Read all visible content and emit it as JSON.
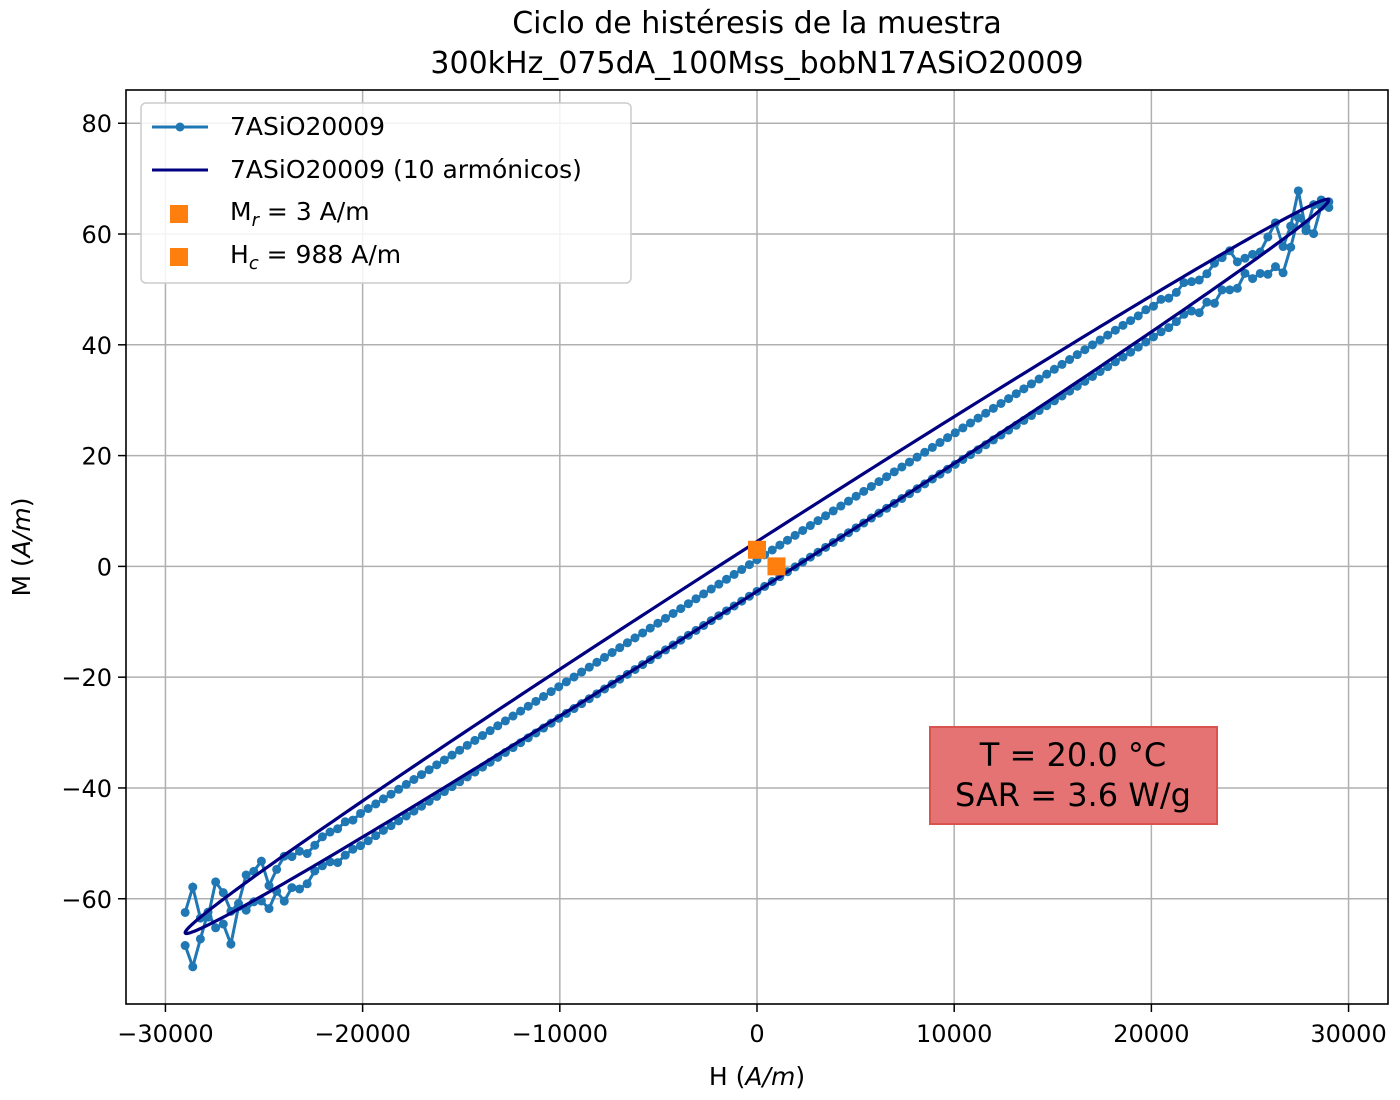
{
  "chart_data": {
    "type": "line",
    "title": [
      "Ciclo de histéresis de la muestra",
      "300kHz_075dA_100Mss_bobN17ASiO20009"
    ],
    "xlabel": {
      "prefix": "H (",
      "unit": "A/m",
      "suffix": ")"
    },
    "ylabel": {
      "prefix": "M (",
      "unit": "A/m",
      "suffix": ")"
    },
    "xlim": [
      -32000,
      32000
    ],
    "ylim": [
      -79,
      86
    ],
    "x_ticks": [
      -30000,
      -20000,
      -10000,
      0,
      10000,
      20000,
      30000
    ],
    "x_tick_labels": [
      "−30000",
      "−20000",
      "−10000",
      "0",
      "10000",
      "20000",
      "30000"
    ],
    "y_ticks": [
      -60,
      -40,
      -20,
      0,
      20,
      40,
      60,
      80
    ],
    "y_tick_labels": [
      "−60",
      "−40",
      "−20",
      "0",
      "20",
      "40",
      "60",
      "80"
    ],
    "grid": true,
    "legend_position": "top-left",
    "series": [
      {
        "name": "7ASiO20009",
        "kind": "line-markers",
        "color": "#1f77b4",
        "model": {
          "hmax": 29000,
          "slope": 0.00228,
          "cubic": 4.5e-17,
          "lower_offset": -4.5,
          "upper_offset": 4.0,
          "noise_amplitude": 7,
          "points_per_branch": 150
        }
      },
      {
        "name": "7ASiO20009 (10 armónicos)",
        "kind": "line",
        "color": "#000080",
        "model": {
          "hmax": 29000,
          "slope": 0.00228,
          "cubic": 4.5e-17,
          "loop_half_height": 4.5
        }
      },
      {
        "name": "Mr = 3 A/m",
        "legend_parts": [
          "M",
          "r",
          " = 3 A/m"
        ],
        "kind": "marker",
        "color": "#ff7f0e",
        "points": [
          [
            0,
            3
          ]
        ]
      },
      {
        "name": "Hc = 988 A/m",
        "legend_parts": [
          "H",
          "c",
          " = 988 A/m"
        ],
        "kind": "marker",
        "color": "#ff7f0e",
        "points": [
          [
            988,
            0
          ]
        ]
      }
    ],
    "annotation": {
      "lines": [
        "T = 20.0 °C",
        "SAR = 3.6 W/g"
      ],
      "background": "#e57373",
      "border": "#d9534f",
      "position": "lower-right"
    }
  }
}
